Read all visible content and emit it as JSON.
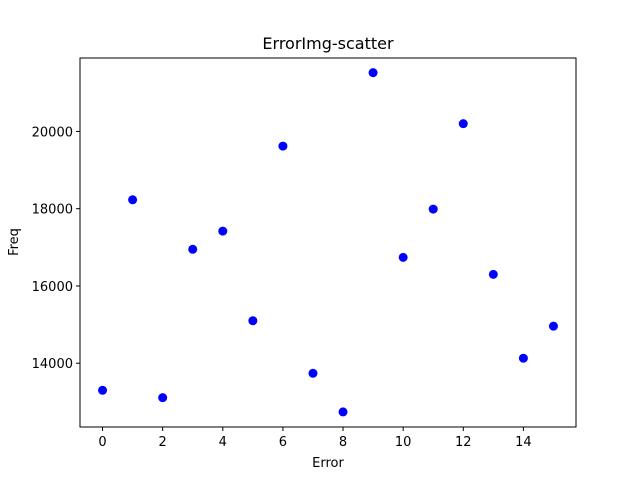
{
  "chart_data": {
    "type": "scatter",
    "title": "ErrorImg-scatter",
    "xlabel": "Error",
    "ylabel": "Freq",
    "x": [
      0,
      1,
      2,
      3,
      4,
      5,
      6,
      7,
      8,
      9,
      10,
      11,
      12,
      13,
      14,
      15
    ],
    "y": [
      13300,
      18230,
      13110,
      16950,
      17420,
      15100,
      19620,
      13740,
      12740,
      21520,
      16740,
      17990,
      20200,
      16300,
      14130,
      14960
    ],
    "xlim": [
      -0.75,
      15.75
    ],
    "ylim": [
      12350,
      21900
    ],
    "xticks": [
      0,
      2,
      4,
      6,
      8,
      10,
      12,
      14
    ],
    "xtick_labels": [
      "0",
      "2",
      "4",
      "6",
      "8",
      "10",
      "12",
      "14"
    ],
    "yticks": [
      14000,
      16000,
      18000,
      20000
    ],
    "ytick_labels": [
      "14000",
      "16000",
      "18000",
      "20000"
    ],
    "marker_color": "#0000ff",
    "grid": false,
    "legend": "none"
  }
}
